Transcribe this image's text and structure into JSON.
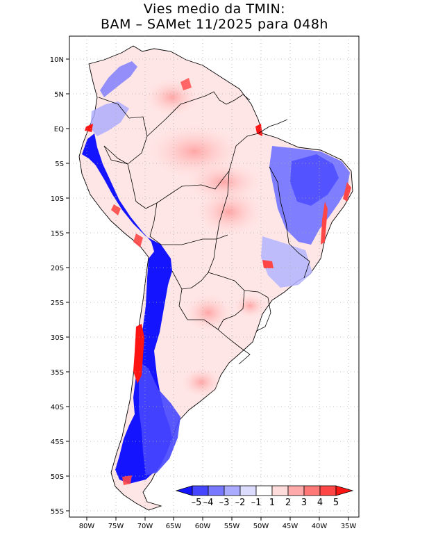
{
  "title": {
    "line1": "Vies medio da TMIN:",
    "line2": "BAM – SAMet 11/2025  para 048h"
  },
  "axes": {
    "lat_labels": [
      "10N",
      "5N",
      "EQ",
      "5S",
      "10S",
      "15S",
      "20S",
      "25S",
      "30S",
      "35S",
      "40S",
      "45S",
      "50S",
      "55S"
    ],
    "lon_labels": [
      "80W",
      "75W",
      "70W",
      "65W",
      "60W",
      "55W",
      "50W",
      "45W",
      "40W",
      "35W"
    ]
  },
  "colorbar": {
    "labels": [
      "–5",
      "–4",
      "–3",
      "–2",
      "–1",
      "1",
      "2",
      "3",
      "4",
      "5"
    ],
    "colors": [
      "#1414ff",
      "#4646ff",
      "#7878ff",
      "#aaaaff",
      "#dcdcff",
      "#ffffff",
      "#ffdcdc",
      "#ffaaaa",
      "#ff7878",
      "#ff4646",
      "#ff1414"
    ]
  }
}
